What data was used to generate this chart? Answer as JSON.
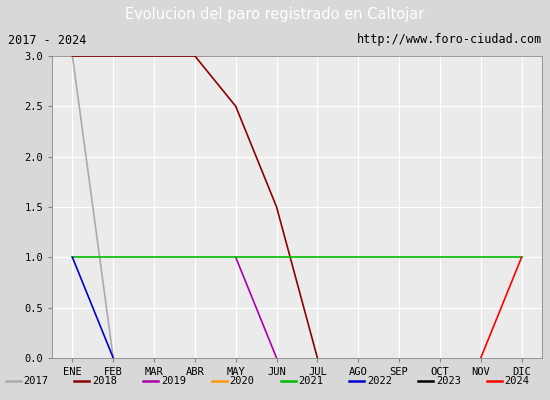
{
  "title": "Evolucion del paro registrado en Caltojar",
  "subtitle_left": "2017 - 2024",
  "subtitle_right": "http://www.foro-ciudad.com",
  "ylim": [
    0.0,
    3.0
  ],
  "title_bg_color": "#4472c4",
  "title_text_color": "#ffffff",
  "subtitle_bg_color": "#e8e8e8",
  "plot_bg_color": "#ebebeb",
  "grid_color": "#ffffff",
  "legend_bg_color": "#e0e0e0",
  "months": [
    "ENE",
    "FEB",
    "MAR",
    "ABR",
    "MAY",
    "JUN",
    "JUL",
    "AGO",
    "SEP",
    "OCT",
    "NOV",
    "DIC"
  ],
  "series": [
    {
      "year": "2017",
      "color": "#aaaaaa",
      "data": [
        [
          1,
          3
        ],
        [
          2,
          0
        ]
      ]
    },
    {
      "year": "2018",
      "color": "#8b0000",
      "data": [
        [
          1,
          3
        ],
        [
          2,
          3
        ],
        [
          3,
          3
        ],
        [
          4,
          3
        ],
        [
          5,
          2.5
        ],
        [
          6,
          1.5
        ],
        [
          7,
          0
        ]
      ]
    },
    {
      "year": "2019",
      "color": "#aa00aa",
      "data": [
        [
          5,
          1
        ],
        [
          6,
          0
        ]
      ]
    },
    {
      "year": "2020",
      "color": "#ff9900",
      "data": []
    },
    {
      "year": "2021",
      "color": "#00bb00",
      "data": [
        [
          1,
          1
        ],
        [
          12,
          1
        ]
      ]
    },
    {
      "year": "2022",
      "color": "#0000cc",
      "data": [
        [
          1,
          1
        ],
        [
          2,
          0
        ]
      ]
    },
    {
      "year": "2023",
      "color": "#000000",
      "data": []
    },
    {
      "year": "2024",
      "color": "#ff0000",
      "data": [
        [
          11,
          0
        ],
        [
          12,
          1
        ]
      ]
    }
  ]
}
